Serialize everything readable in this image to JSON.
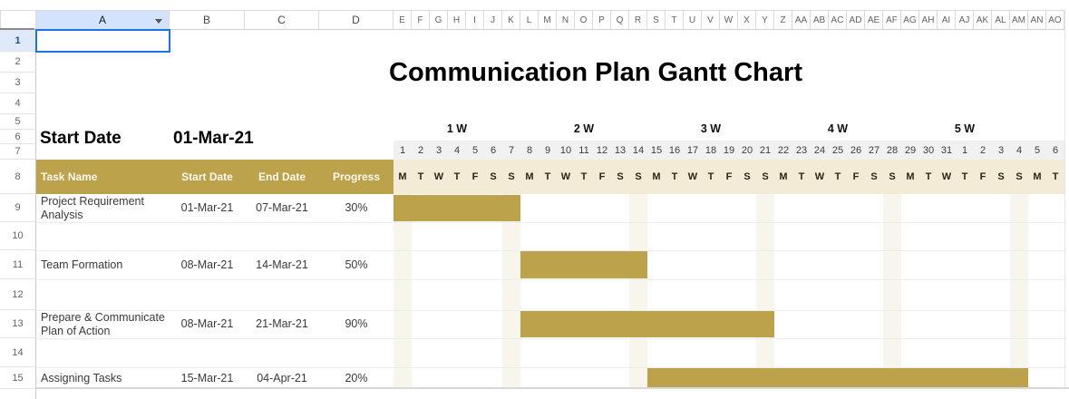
{
  "sheet": {
    "columns_wide": [
      "A",
      "B",
      "C",
      "D"
    ],
    "columns_narrow": [
      "E",
      "F",
      "G",
      "H",
      "I",
      "J",
      "K",
      "L",
      "M",
      "N",
      "O",
      "P",
      "Q",
      "R",
      "S",
      "T",
      "U",
      "V",
      "W",
      "X",
      "Y",
      "Z",
      "AA",
      "AB",
      "AC",
      "AD",
      "AE",
      "AF",
      "AG",
      "AH",
      "AI",
      "AJ",
      "AK",
      "AL",
      "AM",
      "AN",
      "AO"
    ],
    "selected_column": "A",
    "rows": [
      "1",
      "2",
      "3",
      "4",
      "5",
      "6",
      "7",
      "8",
      "9",
      "10",
      "11",
      "12",
      "13",
      "14",
      "15"
    ],
    "selected_row": "1",
    "selected_cell": "A1"
  },
  "content": {
    "title": "Communication Plan Gantt Chart",
    "start_date_label": "Start Date",
    "start_date_value": "01-Mar-21"
  },
  "gantt": {
    "week_labels": [
      "1 W",
      "2 W",
      "3 W",
      "4 W",
      "5 W"
    ],
    "day_numbers": [
      "1",
      "2",
      "3",
      "4",
      "5",
      "6",
      "7",
      "8",
      "9",
      "10",
      "11",
      "12",
      "13",
      "14",
      "15",
      "16",
      "17",
      "18",
      "19",
      "20",
      "21",
      "22",
      "23",
      "24",
      "25",
      "26",
      "27",
      "28",
      "29",
      "30",
      "31",
      "1",
      "2",
      "3",
      "4",
      "5",
      "6"
    ],
    "day_letters": [
      "M",
      "T",
      "W",
      "T",
      "F",
      "S",
      "S",
      "M",
      "T",
      "W",
      "T",
      "F",
      "S",
      "S",
      "M",
      "T",
      "W",
      "T",
      "F",
      "S",
      "S",
      "M",
      "T",
      "W",
      "T",
      "F",
      "S",
      "S",
      "M",
      "T",
      "W",
      "T",
      "F",
      "S",
      "S",
      "M",
      "T"
    ],
    "highlight_days": [
      1,
      7,
      14,
      21,
      28,
      35
    ]
  },
  "table": {
    "headers": [
      "Task Name",
      "Start Date",
      "End Date",
      "Progress"
    ],
    "tasks": [
      {
        "name": "Project Requirement Analysis",
        "start": "01-Mar-21",
        "end": "07-Mar-21",
        "progress": "30%",
        "bar_from": 1,
        "bar_to": 7
      },
      {
        "name": "Team Formation",
        "start": "08-Mar-21",
        "end": "14-Mar-21",
        "progress": "50%",
        "bar_from": 8,
        "bar_to": 14
      },
      {
        "name": "Prepare & Communicate Plan of Action",
        "start": "08-Mar-21",
        "end": "21-Mar-21",
        "progress": "90%",
        "bar_from": 8,
        "bar_to": 21
      },
      {
        "name": "Assigning Tasks",
        "start": "15-Mar-21",
        "end": "04-Apr-21",
        "progress": "20%",
        "bar_from": 15,
        "bar_to": 35
      }
    ]
  },
  "chart_data": {
    "type": "gantt",
    "title": "Communication Plan Gantt Chart",
    "start_date": "01-Mar-21",
    "timeline_days": 37,
    "weeks": [
      "1 W",
      "2 W",
      "3 W",
      "4 W",
      "5 W"
    ],
    "tasks": [
      {
        "name": "Project Requirement Analysis",
        "day_range": [
          1,
          7
        ],
        "progress_pct": 30
      },
      {
        "name": "Team Formation",
        "day_range": [
          8,
          14
        ],
        "progress_pct": 50
      },
      {
        "name": "Prepare & Communicate Plan of Action",
        "day_range": [
          8,
          21
        ],
        "progress_pct": 90
      },
      {
        "name": "Assigning Tasks",
        "day_range": [
          15,
          35
        ],
        "progress_pct": 20
      }
    ]
  },
  "colors": {
    "gold": "#BCA24A",
    "beige": "#F3EBD6",
    "stripe": "#F8F5EC",
    "day_band_gray": "#F1F1F1",
    "selection_blue": "#1A73E8",
    "selected_header_bg": "#D3E3FD"
  }
}
